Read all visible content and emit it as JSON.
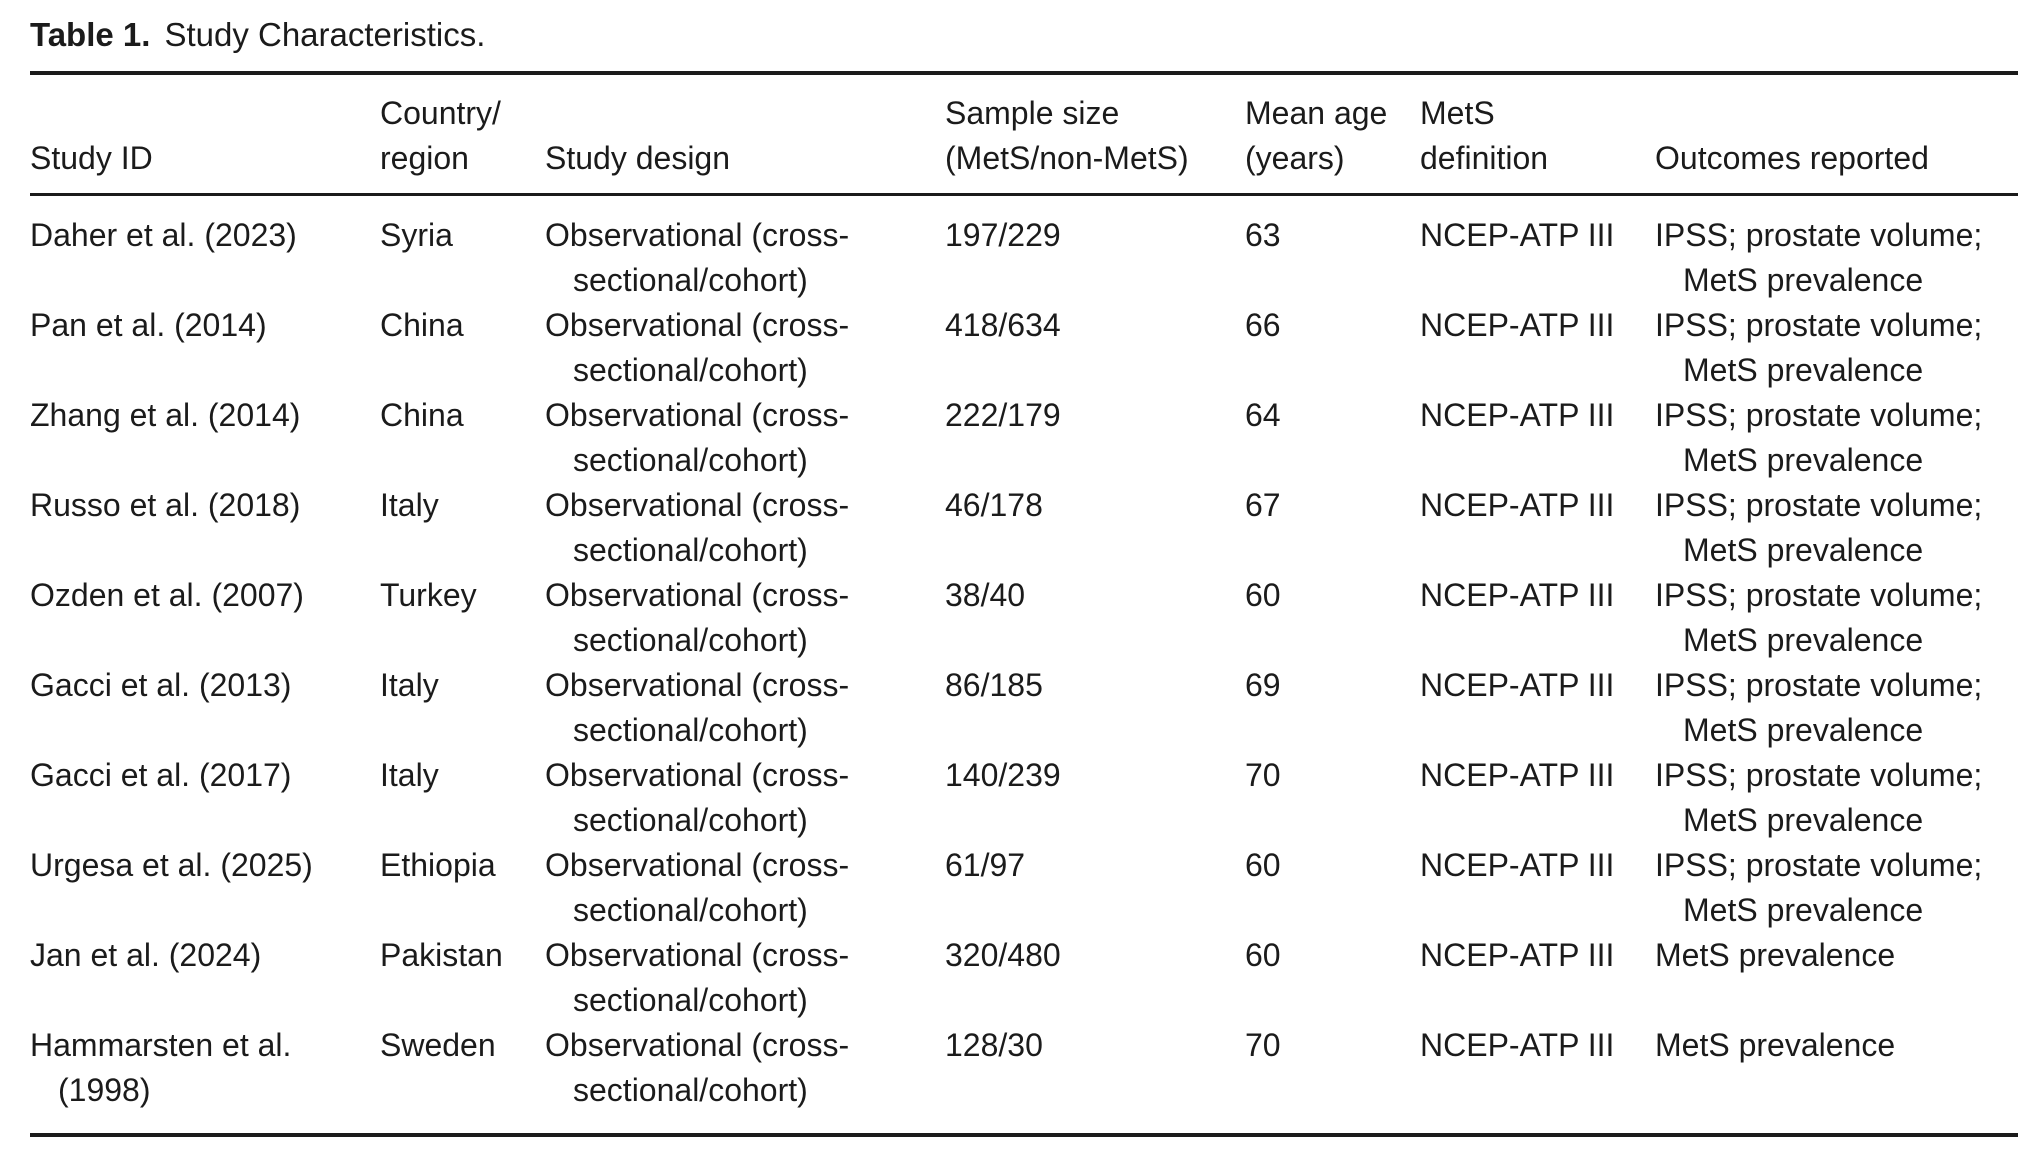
{
  "title": {
    "label": "Table 1.",
    "text": "Study Characteristics."
  },
  "table": {
    "columns": [
      {
        "key": "study_id",
        "header": "Study ID"
      },
      {
        "key": "country",
        "header": "Country/\nregion"
      },
      {
        "key": "design",
        "header": "Study design"
      },
      {
        "key": "sample",
        "header": "Sample size\n(MetS/non-MetS)"
      },
      {
        "key": "age",
        "header": "Mean age\n(years)"
      },
      {
        "key": "mets_definition",
        "header": "MetS\ndefinition"
      },
      {
        "key": "outcomes",
        "header": "Outcomes reported"
      }
    ],
    "rows": [
      {
        "study_id": "Daher et al. (2023)",
        "country": "Syria",
        "design": "Observational (cross-\nsectional/cohort)",
        "sample": "197/229",
        "age": "63",
        "mets_definition": "NCEP-ATP III",
        "outcomes": "IPSS; prostate volume;\nMetS prevalence"
      },
      {
        "study_id": "Pan et al. (2014)",
        "country": "China",
        "design": "Observational (cross-\nsectional/cohort)",
        "sample": "418/634",
        "age": "66",
        "mets_definition": "NCEP-ATP III",
        "outcomes": "IPSS; prostate volume;\nMetS prevalence"
      },
      {
        "study_id": "Zhang et al. (2014)",
        "country": "China",
        "design": "Observational (cross-\nsectional/cohort)",
        "sample": "222/179",
        "age": "64",
        "mets_definition": "NCEP-ATP III",
        "outcomes": "IPSS; prostate volume;\nMetS prevalence"
      },
      {
        "study_id": "Russo et al. (2018)",
        "country": "Italy",
        "design": "Observational (cross-\nsectional/cohort)",
        "sample": "46/178",
        "age": "67",
        "mets_definition": "NCEP-ATP III",
        "outcomes": "IPSS; prostate volume;\nMetS prevalence"
      },
      {
        "study_id": "Ozden et al. (2007)",
        "country": "Turkey",
        "design": "Observational (cross-\nsectional/cohort)",
        "sample": "38/40",
        "age": "60",
        "mets_definition": "NCEP-ATP III",
        "outcomes": "IPSS; prostate volume;\nMetS prevalence"
      },
      {
        "study_id": "Gacci et al. (2013)",
        "country": "Italy",
        "design": "Observational (cross-\nsectional/cohort)",
        "sample": "86/185",
        "age": "69",
        "mets_definition": "NCEP-ATP III",
        "outcomes": "IPSS; prostate volume;\nMetS prevalence"
      },
      {
        "study_id": "Gacci et al. (2017)",
        "country": "Italy",
        "design": "Observational (cross-\nsectional/cohort)",
        "sample": "140/239",
        "age": "70",
        "mets_definition": "NCEP-ATP III",
        "outcomes": "IPSS; prostate volume;\nMetS prevalence"
      },
      {
        "study_id": "Urgesa et al. (2025)",
        "country": "Ethiopia",
        "design": "Observational (cross-\nsectional/cohort)",
        "sample": "61/97",
        "age": "60",
        "mets_definition": "NCEP-ATP III",
        "outcomes": "IPSS; prostate volume;\nMetS prevalence"
      },
      {
        "study_id": "Jan et al. (2024)",
        "country": "Pakistan",
        "design": "Observational (cross-\nsectional/cohort)",
        "sample": "320/480",
        "age": "60",
        "mets_definition": "NCEP-ATP III",
        "outcomes": "MetS prevalence"
      },
      {
        "study_id": "Hammarsten et al.\n(1998)",
        "country": "Sweden",
        "design": "Observational (cross-\nsectional/cohort)",
        "sample": "128/30",
        "age": "70",
        "mets_definition": "NCEP-ATP III",
        "outcomes": "MetS prevalence"
      }
    ]
  }
}
